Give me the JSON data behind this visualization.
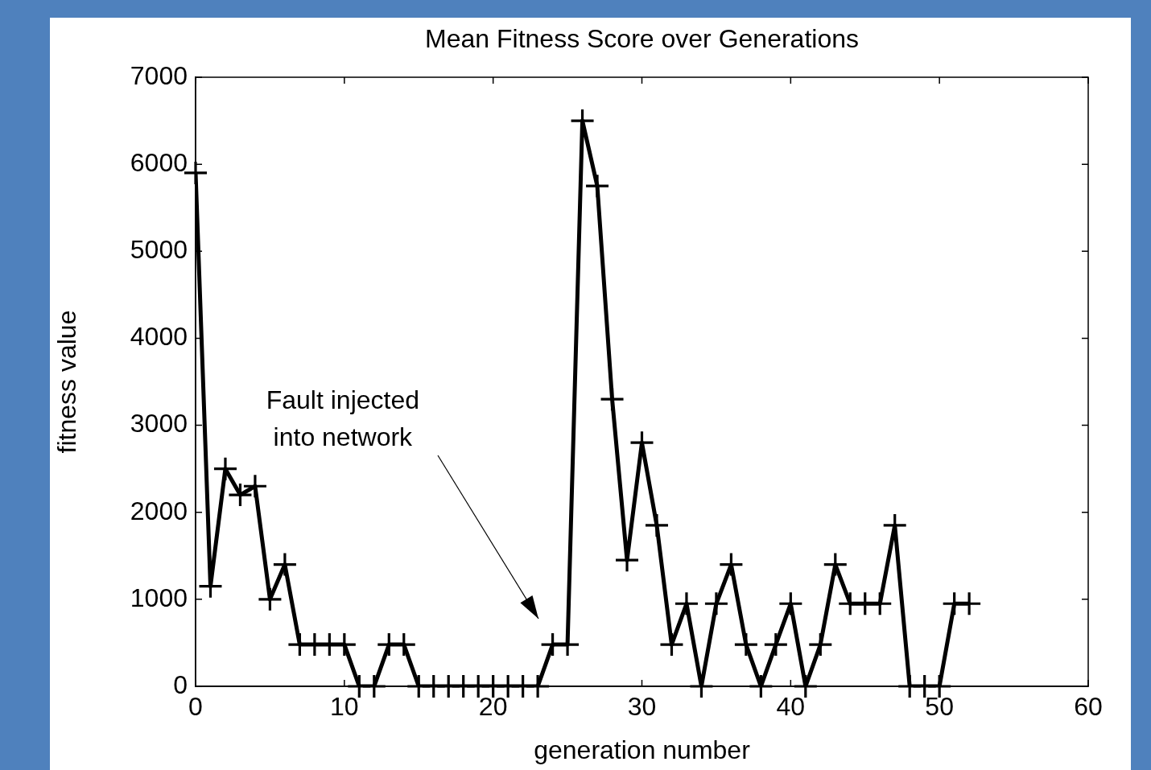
{
  "chart_data": {
    "type": "line",
    "title": "Mean Fitness Score over Generations",
    "xlabel": "generation number",
    "ylabel": "fitness value",
    "xlim": [
      0,
      60
    ],
    "xticks": [
      0,
      10,
      20,
      30,
      40,
      50,
      60
    ],
    "ylim": [
      0,
      7000
    ],
    "yticks": [
      0,
      1000,
      2000,
      3000,
      4000,
      5000,
      6000,
      7000
    ],
    "grid": false,
    "legend": false,
    "marker": "cross",
    "line_style": "solid",
    "series": [
      {
        "color": "#000000",
        "x": [
          0,
          1,
          2,
          3,
          4,
          5,
          6,
          7,
          8,
          9,
          10,
          11,
          12,
          13,
          14,
          15,
          16,
          17,
          18,
          19,
          20,
          21,
          22,
          23,
          24,
          25,
          26,
          27,
          28,
          29,
          30,
          31,
          32,
          33,
          34,
          35,
          36,
          37,
          38,
          39,
          40,
          41,
          42,
          43,
          44,
          45,
          46,
          47,
          48,
          49,
          50,
          51,
          52
        ],
        "values": [
          5900,
          1150,
          2500,
          2200,
          2300,
          1000,
          1400,
          480,
          480,
          480,
          480,
          0,
          0,
          480,
          480,
          0,
          0,
          0,
          0,
          0,
          0,
          0,
          0,
          0,
          480,
          480,
          6500,
          5750,
          3300,
          1450,
          2800,
          1850,
          480,
          950,
          0,
          950,
          1400,
          480,
          0,
          480,
          950,
          0,
          480,
          1400,
          950,
          950,
          950,
          1850,
          0,
          0,
          0,
          950,
          950
        ]
      }
    ],
    "annotations": [
      "Fault injected into network"
    ]
  }
}
